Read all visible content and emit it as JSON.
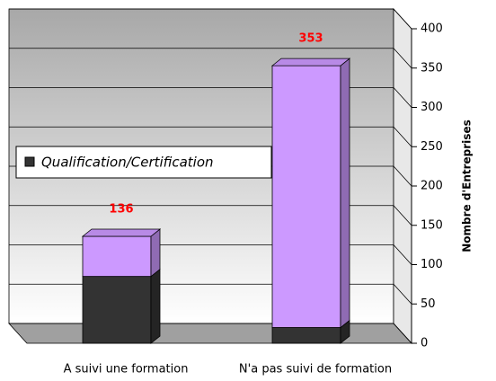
{
  "chart_data": {
    "type": "bar",
    "stacked": true,
    "categories": [
      "A suivi une formation",
      "N'a pas suivi de formation"
    ],
    "series": [
      {
        "name": "Qualification/Certification",
        "color": "#333333",
        "values": [
          85,
          20
        ]
      },
      {
        "color": "#cc99ff",
        "values": [
          51,
          333
        ]
      }
    ],
    "total_labels": [
      136,
      353
    ],
    "y_axis_label": "Nombre d'Entreprises",
    "ylim": [
      0,
      400
    ],
    "yticks": [
      0,
      50,
      100,
      150,
      200,
      250,
      300,
      350,
      400
    ],
    "grid": true,
    "legend": "left"
  }
}
